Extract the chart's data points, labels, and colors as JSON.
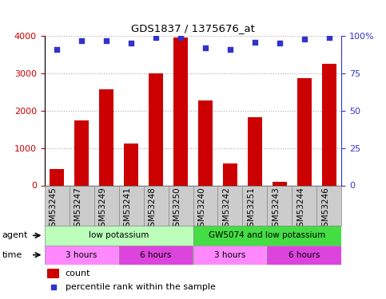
{
  "title": "GDS1837 / 1375676_at",
  "samples": [
    "GSM53245",
    "GSM53247",
    "GSM53249",
    "GSM53241",
    "GSM53248",
    "GSM53250",
    "GSM53240",
    "GSM53242",
    "GSM53251",
    "GSM53243",
    "GSM53244",
    "GSM53246"
  ],
  "counts": [
    430,
    1730,
    2580,
    1130,
    3000,
    3950,
    2280,
    590,
    1830,
    100,
    2870,
    3250
  ],
  "percentiles": [
    91,
    97,
    97,
    95,
    99,
    99,
    92,
    91,
    96,
    95,
    98,
    99
  ],
  "bar_color": "#cc0000",
  "dot_color": "#3333cc",
  "ylim_left": [
    0,
    4000
  ],
  "ylim_right": [
    0,
    100
  ],
  "yticks_left": [
    0,
    1000,
    2000,
    3000,
    4000
  ],
  "yticks_right": [
    0,
    25,
    50,
    75,
    100
  ],
  "ylabel_left_color": "#cc0000",
  "ylabel_right_color": "#3333cc",
  "agent_row": [
    {
      "label": "low potassium",
      "start": 0,
      "end": 6,
      "color": "#bbffbb"
    },
    {
      "label": "GW5074 and low potassium",
      "start": 6,
      "end": 12,
      "color": "#44dd44"
    }
  ],
  "time_row": [
    {
      "label": "3 hours",
      "start": 0,
      "end": 3,
      "color": "#ff88ff"
    },
    {
      "label": "6 hours",
      "start": 3,
      "end": 6,
      "color": "#dd44dd"
    },
    {
      "label": "3 hours",
      "start": 6,
      "end": 9,
      "color": "#ff88ff"
    },
    {
      "label": "6 hours",
      "start": 9,
      "end": 12,
      "color": "#dd44dd"
    }
  ],
  "legend_count_label": "count",
  "legend_pct_label": "percentile rank within the sample",
  "grid_style": "dotted",
  "background_color": "#ffffff",
  "sample_bg_color": "#cccccc",
  "sample_label_fontsize": 7.5
}
